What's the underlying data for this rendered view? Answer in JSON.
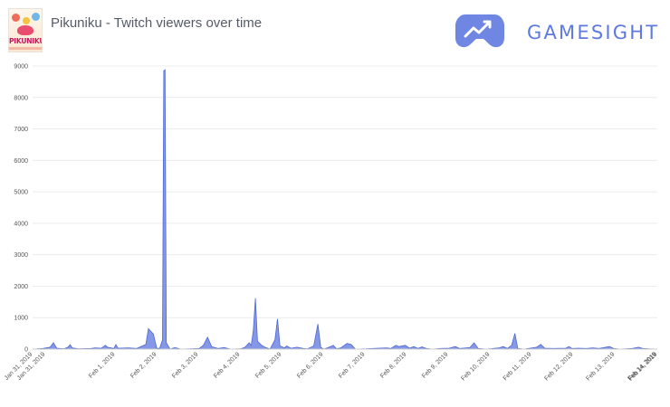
{
  "header": {
    "game_thumbnail_text": "PIKUNIKU",
    "title": "Pikuniku - Twitch viewers over time",
    "brand_name": "GAMESIGHT",
    "brand_color": "#5e7ae0"
  },
  "chart_data": {
    "type": "area",
    "title": "Pikuniku - Twitch viewers over time",
    "xlabel": "",
    "ylabel": "",
    "ylim": [
      0,
      9000
    ],
    "y_ticks": [
      0,
      1000,
      2000,
      3000,
      4000,
      5000,
      6000,
      7000,
      8000,
      9000
    ],
    "x_tick_labels": [
      "Jan 31, 2019",
      "Jan 31, 2019",
      "Feb 1, 2019",
      "Feb 2, 2019",
      "Feb 3, 2019",
      "Feb 4, 2019",
      "Feb 5, 2019",
      "Feb 6, 2019",
      "Feb 7, 2019",
      "Feb 8, 2019",
      "Feb 9, 2019",
      "Feb 10, 2019",
      "Feb 11, 2019",
      "Feb 12, 2019",
      "Feb 13, 2019",
      "Feb 14, 2019",
      "Feb 14, 2019"
    ],
    "x_range_days": [
      0,
      15
    ],
    "grid": true,
    "series": [
      {
        "name": "Twitch viewers",
        "color": "#6f86e3",
        "points": [
          [
            0.0,
            0
          ],
          [
            0.25,
            20
          ],
          [
            0.42,
            60
          ],
          [
            0.5,
            200
          ],
          [
            0.58,
            30
          ],
          [
            0.75,
            10
          ],
          [
            0.85,
            60
          ],
          [
            0.9,
            140
          ],
          [
            0.95,
            40
          ],
          [
            1.1,
            10
          ],
          [
            1.4,
            20
          ],
          [
            1.5,
            40
          ],
          [
            1.65,
            30
          ],
          [
            1.75,
            120
          ],
          [
            1.8,
            60
          ],
          [
            1.95,
            20
          ],
          [
            2.0,
            140
          ],
          [
            2.05,
            30
          ],
          [
            2.3,
            40
          ],
          [
            2.5,
            20
          ],
          [
            2.72,
            150
          ],
          [
            2.78,
            650
          ],
          [
            2.9,
            480
          ],
          [
            2.98,
            30
          ],
          [
            3.05,
            20
          ],
          [
            3.12,
            300
          ],
          [
            3.15,
            8850
          ],
          [
            3.18,
            8880
          ],
          [
            3.21,
            200
          ],
          [
            3.3,
            0
          ],
          [
            3.42,
            50
          ],
          [
            3.55,
            0
          ],
          [
            3.8,
            10
          ],
          [
            4.0,
            20
          ],
          [
            4.1,
            120
          ],
          [
            4.2,
            380
          ],
          [
            4.3,
            80
          ],
          [
            4.45,
            20
          ],
          [
            4.6,
            50
          ],
          [
            4.75,
            0
          ],
          [
            5.0,
            10
          ],
          [
            5.1,
            60
          ],
          [
            5.2,
            200
          ],
          [
            5.25,
            120
          ],
          [
            5.3,
            600
          ],
          [
            5.35,
            1620
          ],
          [
            5.4,
            250
          ],
          [
            5.5,
            120
          ],
          [
            5.6,
            50
          ],
          [
            5.7,
            0
          ],
          [
            5.82,
            300
          ],
          [
            5.88,
            960
          ],
          [
            5.94,
            100
          ],
          [
            6.05,
            40
          ],
          [
            6.1,
            100
          ],
          [
            6.2,
            30
          ],
          [
            6.35,
            60
          ],
          [
            6.5,
            20
          ],
          [
            6.6,
            10
          ],
          [
            6.75,
            100
          ],
          [
            6.85,
            800
          ],
          [
            6.92,
            50
          ],
          [
            7.0,
            0
          ],
          [
            7.15,
            80
          ],
          [
            7.22,
            120
          ],
          [
            7.3,
            10
          ],
          [
            7.4,
            40
          ],
          [
            7.55,
            180
          ],
          [
            7.65,
            150
          ],
          [
            7.75,
            0
          ],
          [
            8.0,
            10
          ],
          [
            8.3,
            30
          ],
          [
            8.5,
            40
          ],
          [
            8.6,
            20
          ],
          [
            8.72,
            120
          ],
          [
            8.8,
            80
          ],
          [
            8.95,
            120
          ],
          [
            9.05,
            30
          ],
          [
            9.15,
            80
          ],
          [
            9.25,
            20
          ],
          [
            9.35,
            70
          ],
          [
            9.45,
            20
          ],
          [
            9.6,
            0
          ],
          [
            9.8,
            20
          ],
          [
            10.0,
            30
          ],
          [
            10.15,
            80
          ],
          [
            10.25,
            20
          ],
          [
            10.5,
            50
          ],
          [
            10.6,
            200
          ],
          [
            10.7,
            20
          ],
          [
            10.9,
            0
          ],
          [
            11.2,
            40
          ],
          [
            11.3,
            80
          ],
          [
            11.4,
            20
          ],
          [
            11.5,
            120
          ],
          [
            11.58,
            500
          ],
          [
            11.65,
            20
          ],
          [
            11.8,
            0
          ],
          [
            12.0,
            40
          ],
          [
            12.1,
            60
          ],
          [
            12.2,
            150
          ],
          [
            12.3,
            30
          ],
          [
            12.5,
            20
          ],
          [
            12.8,
            30
          ],
          [
            12.88,
            80
          ],
          [
            12.95,
            20
          ],
          [
            13.1,
            30
          ],
          [
            13.3,
            20
          ],
          [
            13.45,
            40
          ],
          [
            13.6,
            20
          ],
          [
            13.85,
            80
          ],
          [
            13.95,
            20
          ],
          [
            14.1,
            0
          ],
          [
            14.4,
            20
          ],
          [
            14.55,
            60
          ],
          [
            14.65,
            20
          ],
          [
            14.8,
            10
          ],
          [
            15.0,
            0
          ]
        ]
      }
    ]
  }
}
